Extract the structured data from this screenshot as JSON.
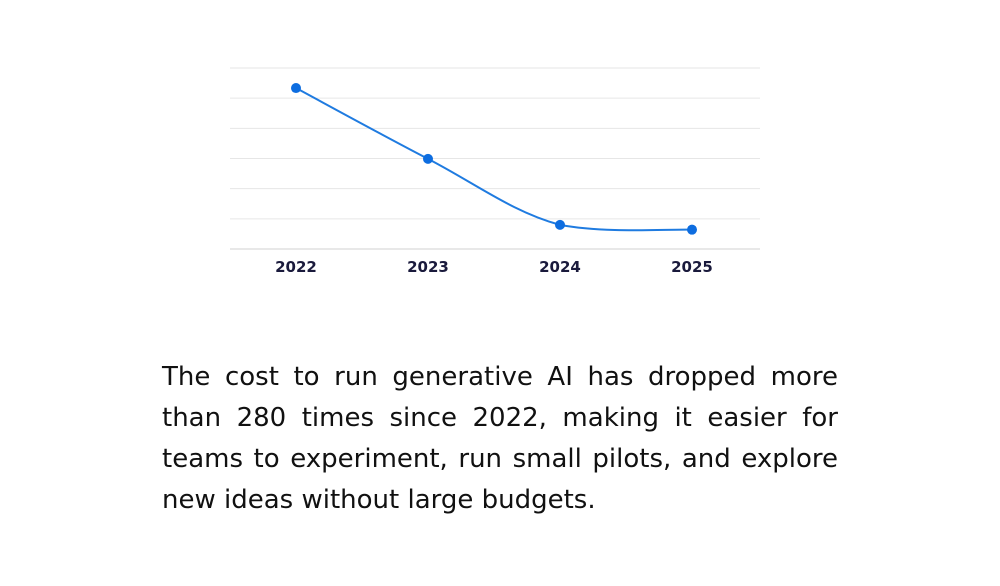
{
  "chart_data": {
    "type": "line",
    "title": "",
    "xlabel": "",
    "ylabel": "",
    "x": [
      "2022",
      "2023",
      "2024",
      "2025"
    ],
    "values": [
      100,
      56,
      15,
      12
    ],
    "ylim": [
      0,
      105
    ],
    "grid": true,
    "legend": "none",
    "line_color": "#1f7be0",
    "point_color": "#0d6de0",
    "gridline_color": "#e6e6e6"
  },
  "caption": "The cost to run generative AI has dropped more than 280 times since 2022, making it easier for teams to experiment, run small pilots, and explore new ideas without large budgets."
}
